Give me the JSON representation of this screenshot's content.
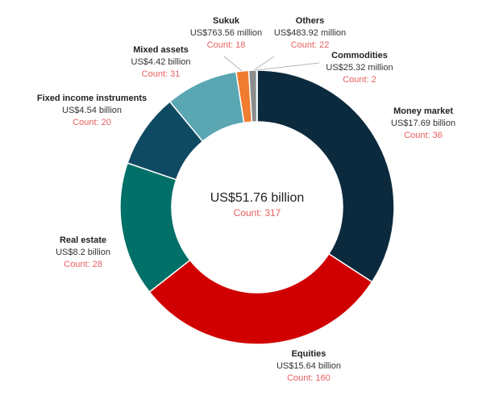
{
  "chart_data": {
    "type": "pie",
    "variant": "donut",
    "center": {
      "total": "US$51.76 billion",
      "count": "Count: 317"
    },
    "slices": [
      {
        "name": "Money market",
        "value": 17.69,
        "value_label": "US$17.69 billion",
        "count_label": "Count: 36",
        "color": "#0b2a3e"
      },
      {
        "name": "Equities",
        "value": 15.64,
        "value_label": "US$15.64 billion",
        "count_label": "Count: 160",
        "color": "#d00000"
      },
      {
        "name": "Real estate",
        "value": 8.2,
        "value_label": "US$8.2 billion",
        "count_label": "Count: 28",
        "color": "#007068"
      },
      {
        "name": "Fixed income instruments",
        "value": 4.54,
        "value_label": "US$4.54 billion",
        "count_label": "Count: 20",
        "color": "#0f4a63"
      },
      {
        "name": "Mixed assets",
        "value": 4.42,
        "value_label": "US$4.42 billion",
        "count_label": "Count: 31",
        "color": "#5aa6b2"
      },
      {
        "name": "Sukuk",
        "value": 0.76356,
        "value_label": "US$763.56 million",
        "count_label": "Count: 18",
        "color": "#f07c30"
      },
      {
        "name": "Others",
        "value": 0.48392,
        "value_label": "US$483.92 million",
        "count_label": "Count: 22",
        "color": "#8d8d8d"
      },
      {
        "name": "Commodities",
        "value": 0.02532,
        "value_label": "US$25.32 million",
        "count_label": "Count: 2",
        "color": "#c9c9c9"
      }
    ],
    "colors": {
      "label_name": "#1f1f1f",
      "count_text": "#e8605f"
    }
  }
}
